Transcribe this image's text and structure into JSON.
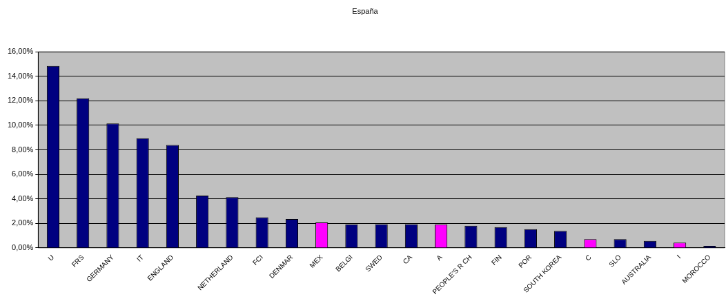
{
  "chart_data": {
    "type": "bar",
    "title": "España",
    "categories": [
      "U",
      "FRS",
      "GERMANY",
      "IT",
      "ENGLAND",
      null,
      "NETHERLAND",
      "FCI",
      "DENMAR",
      "MEX",
      "BELGI",
      "SWED",
      "CA",
      "A",
      "PEOPLE'S R CH",
      "FIN",
      "POR",
      "SOUTH KOREA",
      "C",
      "SLO",
      "AUSTRALIA",
      "I",
      "MOROCCO"
    ],
    "values": [
      14.85,
      12.2,
      10.15,
      8.94,
      8.39,
      4.27,
      4.14,
      2.49,
      2.35,
      2.08,
      1.92,
      1.94,
      1.94,
      1.92,
      1.81,
      1.69,
      1.53,
      1.39,
      0.71,
      0.71,
      0.57,
      0.43,
      0.16
    ],
    "colors": [
      "#000080",
      "#000080",
      "#000080",
      "#000080",
      "#000080",
      "#000080",
      "#000080",
      "#000080",
      "#000080",
      "#ff00ff",
      "#000080",
      "#000080",
      "#000080",
      "#ff00ff",
      "#000080",
      "#000080",
      "#000080",
      "#000080",
      "#ff00ff",
      "#000080",
      "#000080",
      "#ff00ff",
      "#000080"
    ],
    "ylim": [
      0,
      16
    ],
    "yticks": [
      {
        "value": 0,
        "label": "0,00%"
      },
      {
        "value": 2,
        "label": "2,00%"
      },
      {
        "value": 4,
        "label": "4,00%"
      },
      {
        "value": 6,
        "label": "6,00%"
      },
      {
        "value": 8,
        "label": "8,00%"
      },
      {
        "value": 10,
        "label": "10,00%"
      },
      {
        "value": 12,
        "label": "12,00%"
      },
      {
        "value": 14,
        "label": "14,00%"
      },
      {
        "value": 16,
        "label": "16,00%"
      }
    ],
    "grid": "y",
    "legend": false
  }
}
